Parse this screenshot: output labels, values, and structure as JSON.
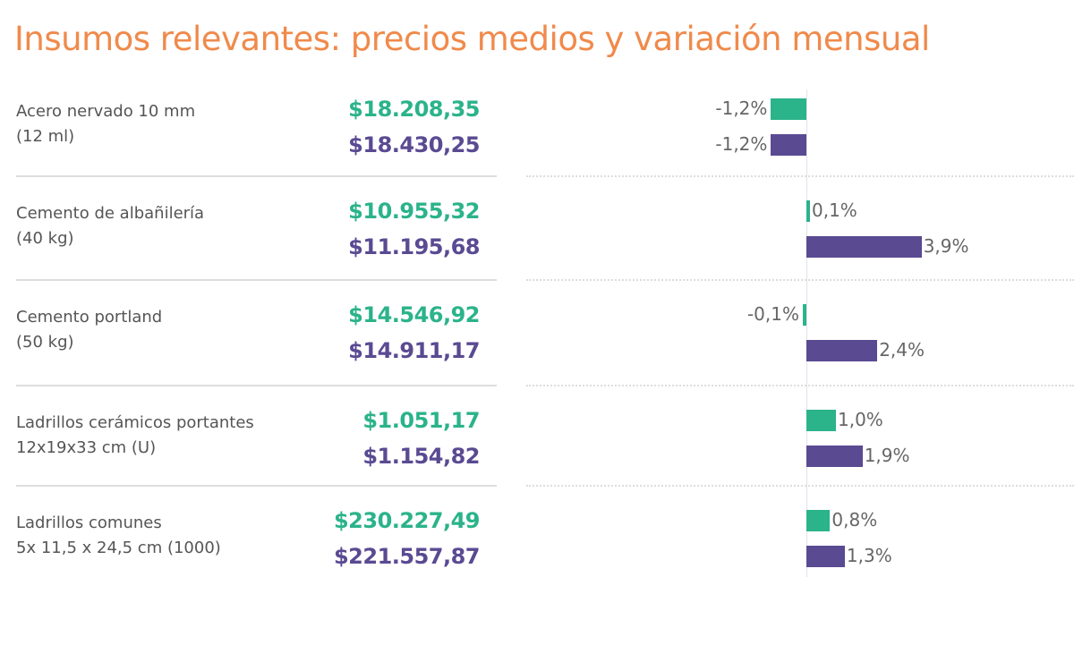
{
  "colors": {
    "title": "#f08a4b",
    "series_a": "#2bb38a",
    "series_b": "#5a4a92"
  },
  "chart_data": {
    "type": "bar",
    "title": "Insumos relevantes: precios medios y variación mensual",
    "orientation": "horizontal",
    "categories": [
      {
        "name": "Acero nervado 10 mm",
        "unit": "(12 ml)"
      },
      {
        "name": "Cemento de albañilería",
        "unit": "(40 kg)"
      },
      {
        "name": "Cemento portland",
        "unit": "(50 kg)"
      },
      {
        "name": "Ladrillos cerámicos portantes",
        "unit": "12x19x33 cm (U)"
      },
      {
        "name": "Ladrillos comunes",
        "unit": "5x 11,5 x 24,5 cm (1000)"
      }
    ],
    "series": [
      {
        "name": "green",
        "prices": [
          "$18.208,35",
          "$10.955,32",
          "$14.546,92",
          "$1.051,17",
          "$230.227,49"
        ],
        "values": [
          -1.2,
          0.1,
          -0.1,
          1.0,
          0.8
        ],
        "labels": [
          "-1,2%",
          "0,1%",
          "-0,1%",
          "1,0%",
          "0,8%"
        ]
      },
      {
        "name": "purple",
        "prices": [
          "$18.430,25",
          "$11.195,68",
          "$14.911,17",
          "$1.154,82",
          "$221.557,87"
        ],
        "values": [
          -1.2,
          3.9,
          2.4,
          1.9,
          1.3
        ],
        "labels": [
          "-1,2%",
          "3,9%",
          "2,4%",
          "1,9%",
          "1,3%"
        ]
      }
    ],
    "xlabel": "",
    "ylabel": "",
    "grid": false
  }
}
